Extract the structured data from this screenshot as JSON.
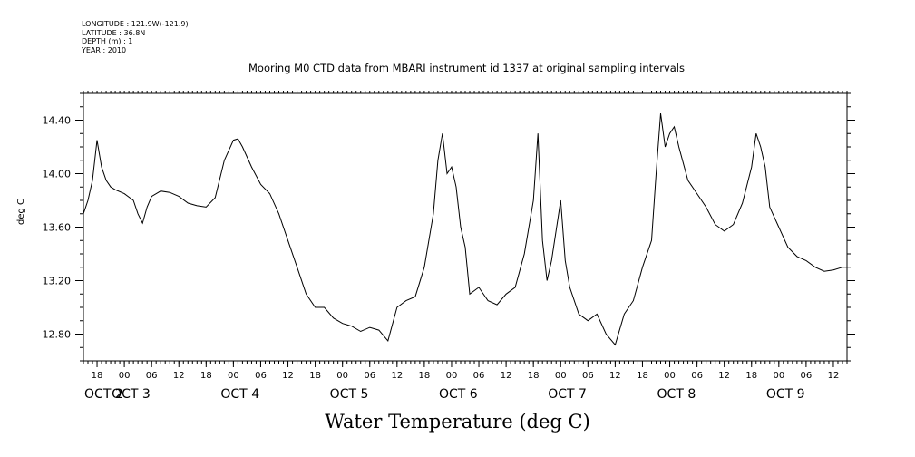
{
  "header": {
    "longitude": "LONGITUDE : 121.9W(-121.9)",
    "latitude": "LATITUDE : 36.8N",
    "depth": "DEPTH (m) : 1",
    "year": "YEAR : 2010"
  },
  "chart_data": {
    "type": "line",
    "title": "Mooring M0 CTD data from MBARI instrument id 1337 at original sampling intervals",
    "xlabel": "Water Temperature (deg C)",
    "ylabel": "deg C",
    "xlim": [
      "2010-10-02T15:00",
      "2010-10-09T15:00"
    ],
    "ylim": [
      12.6,
      14.6
    ],
    "y_ticks": [
      "12.80",
      "13.20",
      "13.60",
      "14.00",
      "14.40"
    ],
    "x_hour_ticks": [
      "18",
      "00",
      "06",
      "12",
      "18",
      "00",
      "06",
      "12",
      "18",
      "00",
      "06",
      "12",
      "18",
      "00",
      "06",
      "12",
      "18",
      "00",
      "06",
      "12",
      "18",
      "00",
      "06",
      "12",
      "18",
      "00",
      "06",
      "12",
      "18",
      "00",
      "06",
      "12",
      "18",
      "00",
      "06",
      "12",
      "18",
      "00",
      "06",
      "12"
    ],
    "x_day_labels": [
      "OCT  2",
      "OCT  3",
      "OCT  4",
      "OCT  5",
      "OCT  6",
      "OCT  7",
      "OCT  8",
      "OCT  9"
    ],
    "grid": false,
    "series": [
      {
        "x": [
          "2010-10-02T15:00",
          "2010-10-02T16:00",
          "2010-10-02T17:00",
          "2010-10-02T18:00",
          "2010-10-02T19:00",
          "2010-10-02T20:00",
          "2010-10-02T21:00",
          "2010-10-02T22:00",
          "2010-10-03T00:00",
          "2010-10-03T02:00",
          "2010-10-03T03:00",
          "2010-10-03T04:00",
          "2010-10-03T05:00",
          "2010-10-03T06:00",
          "2010-10-03T08:00",
          "2010-10-03T10:00",
          "2010-10-03T12:00",
          "2010-10-03T14:00",
          "2010-10-03T16:00",
          "2010-10-03T18:00",
          "2010-10-03T20:00",
          "2010-10-03T22:00",
          "2010-10-04T00:00",
          "2010-10-04T01:00",
          "2010-10-04T02:00",
          "2010-10-04T04:00",
          "2010-10-04T06:00",
          "2010-10-04T08:00",
          "2010-10-04T10:00",
          "2010-10-04T12:00",
          "2010-10-04T14:00",
          "2010-10-04T16:00",
          "2010-10-04T18:00",
          "2010-10-04T20:00",
          "2010-10-04T22:00",
          "2010-10-05T00:00",
          "2010-10-05T02:00",
          "2010-10-05T04:00",
          "2010-10-05T06:00",
          "2010-10-05T08:00",
          "2010-10-05T10:00",
          "2010-10-05T12:00",
          "2010-10-05T14:00",
          "2010-10-05T16:00",
          "2010-10-05T18:00",
          "2010-10-05T20:00",
          "2010-10-05T21:00",
          "2010-10-05T22:00",
          "2010-10-05T23:00",
          "2010-10-06T00:00",
          "2010-10-06T01:00",
          "2010-10-06T02:00",
          "2010-10-06T03:00",
          "2010-10-06T04:00",
          "2010-10-06T06:00",
          "2010-10-06T08:00",
          "2010-10-06T10:00",
          "2010-10-06T12:00",
          "2010-10-06T14:00",
          "2010-10-06T16:00",
          "2010-10-06T18:00",
          "2010-10-06T19:00",
          "2010-10-06T20:00",
          "2010-10-06T21:00",
          "2010-10-06T22:00",
          "2010-10-07T00:00",
          "2010-10-07T01:00",
          "2010-10-07T02:00",
          "2010-10-07T04:00",
          "2010-10-07T06:00",
          "2010-10-07T08:00",
          "2010-10-07T10:00",
          "2010-10-07T12:00",
          "2010-10-07T14:00",
          "2010-10-07T16:00",
          "2010-10-07T18:00",
          "2010-10-07T20:00",
          "2010-10-07T21:00",
          "2010-10-07T22:00",
          "2010-10-07T23:00",
          "2010-10-08T00:00",
          "2010-10-08T01:00",
          "2010-10-08T02:00",
          "2010-10-08T04:00",
          "2010-10-08T06:00",
          "2010-10-08T08:00",
          "2010-10-08T10:00",
          "2010-10-08T12:00",
          "2010-10-08T14:00",
          "2010-10-08T16:00",
          "2010-10-08T18:00",
          "2010-10-08T19:00",
          "2010-10-08T20:00",
          "2010-10-08T21:00",
          "2010-10-08T22:00",
          "2010-10-09T00:00",
          "2010-10-09T02:00",
          "2010-10-09T04:00",
          "2010-10-09T06:00",
          "2010-10-09T08:00",
          "2010-10-09T10:00",
          "2010-10-09T12:00",
          "2010-10-09T14:00",
          "2010-10-09T15:00"
        ],
        "y": [
          13.7,
          13.8,
          13.95,
          14.25,
          14.05,
          13.95,
          13.9,
          13.88,
          13.85,
          13.8,
          13.7,
          13.63,
          13.75,
          13.83,
          13.87,
          13.86,
          13.83,
          13.78,
          13.76,
          13.75,
          13.82,
          14.1,
          14.25,
          14.26,
          14.2,
          14.05,
          13.92,
          13.85,
          13.7,
          13.5,
          13.3,
          13.1,
          13.0,
          13.0,
          12.92,
          12.88,
          12.86,
          12.82,
          12.85,
          12.83,
          12.75,
          13.0,
          13.05,
          13.08,
          13.3,
          13.7,
          14.1,
          14.3,
          14.0,
          14.05,
          13.9,
          13.6,
          13.45,
          13.1,
          13.15,
          13.05,
          13.02,
          13.1,
          13.15,
          13.4,
          13.8,
          14.3,
          13.5,
          13.2,
          13.35,
          13.8,
          13.35,
          13.15,
          12.95,
          12.9,
          12.95,
          12.8,
          12.72,
          12.95,
          13.05,
          13.3,
          13.5,
          14.0,
          14.45,
          14.2,
          14.3,
          14.35,
          14.2,
          13.95,
          13.85,
          13.75,
          13.62,
          13.57,
          13.62,
          13.78,
          14.05,
          14.3,
          14.2,
          14.05,
          13.75,
          13.6,
          13.45,
          13.38,
          13.35,
          13.3,
          13.27,
          13.28,
          13.3,
          13.3
        ],
        "color": "#000000"
      }
    ]
  }
}
